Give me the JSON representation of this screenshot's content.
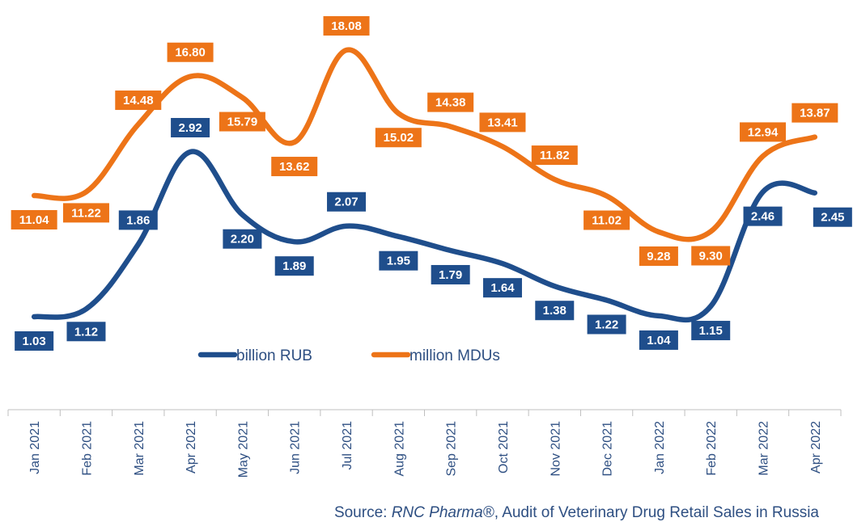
{
  "chart_data": {
    "type": "line",
    "categories": [
      "Jan 2021",
      "Feb 2021",
      "Mar 2021",
      "Apr 2021",
      "May 2021",
      "Jun 2021",
      "Jul 2021",
      "Aug 2021",
      "Sep 2021",
      "Oct 2021",
      "Nov 2021",
      "Dec 2021",
      "Jan 2022",
      "Feb 2022",
      "Mar 2022",
      "Apr 2022"
    ],
    "series": [
      {
        "name": "billion RUB",
        "color": "#1f4e8c",
        "values": [
          1.03,
          1.12,
          1.86,
          2.92,
          2.2,
          1.89,
          2.07,
          1.95,
          1.79,
          1.64,
          1.38,
          1.22,
          1.04,
          1.15,
          2.46,
          2.45
        ],
        "labels": [
          "1.03",
          "1.12",
          "1.86",
          "2.92",
          "2.20",
          "1.89",
          "2.07",
          "1.95",
          "1.79",
          "1.64",
          "1.38",
          "1.22",
          "1.04",
          "1.15",
          "2.46",
          "2.45"
        ]
      },
      {
        "name": "million MDUs",
        "color": "#ed7418",
        "values": [
          11.04,
          11.22,
          14.48,
          16.8,
          15.79,
          13.62,
          18.08,
          15.02,
          14.38,
          13.41,
          11.82,
          11.02,
          9.28,
          9.3,
          12.94,
          13.87
        ],
        "labels": [
          "11.04",
          "11.22",
          "14.48",
          "16.80",
          "15.79",
          "13.62",
          "18.08",
          "15.02",
          "14.38",
          "13.41",
          "11.82",
          "11.02",
          "9.28",
          "9.30",
          "12.94",
          "13.87"
        ]
      }
    ],
    "legend_placement": "center",
    "grid": false
  },
  "source": {
    "prefix": "Source: ",
    "brand": "RNC Pharma®",
    "suffix": ", Audit of Veterinary Drug Retail Sales in Russia"
  }
}
